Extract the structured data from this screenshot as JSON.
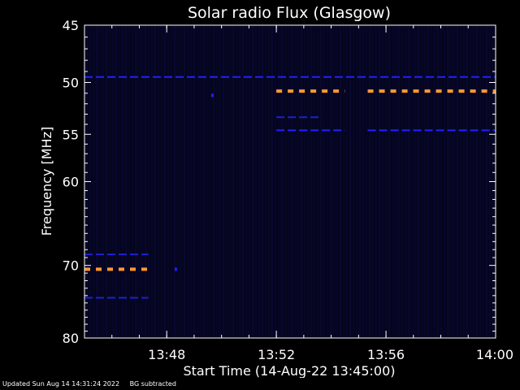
{
  "footer": {
    "updated": "Updated Sun Aug 14 14:31:24 2022",
    "bg_note": "BG subtracted"
  },
  "chart_data": {
    "type": "heatmap",
    "title": "Solar radio Flux (Glasgow)",
    "xlabel": "Start Time (14-Aug-22 13:45:00)",
    "ylabel": "Frequency [MHz]",
    "x_unit": "time",
    "xlim": [
      "13:45",
      "14:00"
    ],
    "ylim_mhz": [
      45,
      80
    ],
    "y_axis_reversed": true,
    "y_scale": "log",
    "x_ticks": [
      "13:48",
      "13:52",
      "13:56",
      "14:00"
    ],
    "y_ticks": [
      45,
      50,
      55,
      60,
      70,
      80
    ],
    "background_color": "#05051e",
    "features": [
      {
        "kind": "dashed-line",
        "freq_mhz": 49.5,
        "start": "13:45",
        "end": "14:00",
        "color": "#2020ff"
      },
      {
        "kind": "dashed-line",
        "freq_mhz": 50.8,
        "start": "13:52",
        "end": "13:54:30",
        "color": "#ff9933"
      },
      {
        "kind": "dashed-line",
        "freq_mhz": 50.8,
        "start": "13:55:20",
        "end": "14:00",
        "color": "#ff9933"
      },
      {
        "kind": "dashed-line",
        "freq_mhz": 53.3,
        "start": "13:52",
        "end": "13:53:40",
        "color": "#2020d0"
      },
      {
        "kind": "dashed-line",
        "freq_mhz": 54.6,
        "start": "13:52",
        "end": "13:54:30",
        "color": "#2020ff"
      },
      {
        "kind": "dashed-line",
        "freq_mhz": 54.6,
        "start": "13:55:20",
        "end": "14:00",
        "color": "#2020ff"
      },
      {
        "kind": "dashed-line",
        "freq_mhz": 68.6,
        "start": "13:45",
        "end": "13:47:20",
        "color": "#2020d0"
      },
      {
        "kind": "dashed-line",
        "freq_mhz": 70.5,
        "start": "13:45",
        "end": "13:47:20",
        "color": "#ff9933"
      },
      {
        "kind": "dashed-line",
        "freq_mhz": 74.3,
        "start": "13:45",
        "end": "13:47:20",
        "color": "#2020d0"
      },
      {
        "kind": "dot",
        "freq_mhz": 51.2,
        "time": "13:49:40",
        "color": "#2020ff"
      },
      {
        "kind": "dot",
        "freq_mhz": 70.5,
        "time": "13:48:20",
        "color": "#2020ff"
      }
    ]
  }
}
